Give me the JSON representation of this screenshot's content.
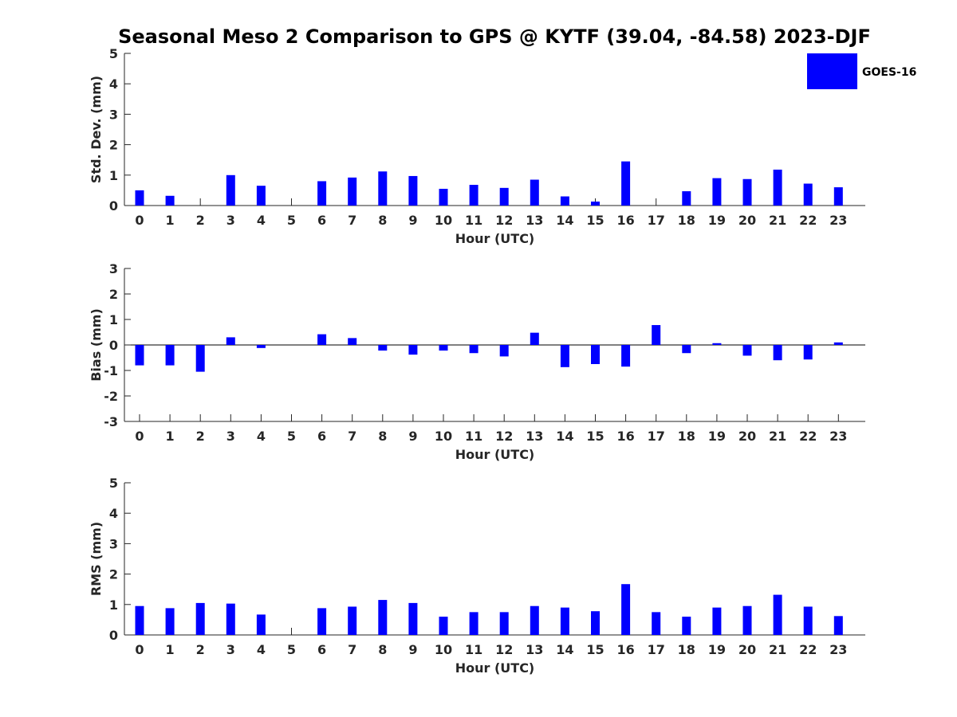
{
  "title": "Seasonal Meso 2 Comparison to GPS @ KYTF (39.04, -84.58) 2023-DJF",
  "legend": {
    "label": "GOES-16",
    "color": "#0000ff"
  },
  "bar_color": "#0000ff",
  "chart_data": [
    {
      "type": "bar",
      "xlabel": "Hour (UTC)",
      "ylabel": "Std. Dev. (mm)",
      "ylim": [
        0,
        5
      ],
      "yticks": [
        0,
        1,
        2,
        3,
        4,
        5
      ],
      "categories": [
        "0",
        "1",
        "2",
        "3",
        "4",
        "5",
        "6",
        "7",
        "8",
        "9",
        "10",
        "11",
        "12",
        "13",
        "14",
        "15",
        "16",
        "17",
        "18",
        "19",
        "20",
        "21",
        "22",
        "23"
      ],
      "series": [
        {
          "name": "GOES-16",
          "values": [
            0.5,
            0.32,
            null,
            1.0,
            0.65,
            null,
            0.8,
            0.92,
            1.12,
            0.97,
            0.55,
            0.68,
            0.58,
            0.85,
            0.3,
            0.13,
            1.45,
            null,
            0.47,
            0.9,
            0.87,
            1.18,
            0.72,
            0.6
          ]
        }
      ]
    },
    {
      "type": "bar",
      "xlabel": "Hour (UTC)",
      "ylabel": "Bias (mm)",
      "ylim": [
        -3,
        3
      ],
      "yticks": [
        -3,
        -2,
        -1,
        0,
        1,
        2,
        3
      ],
      "categories": [
        "0",
        "1",
        "2",
        "3",
        "4",
        "5",
        "6",
        "7",
        "8",
        "9",
        "10",
        "11",
        "12",
        "13",
        "14",
        "15",
        "16",
        "17",
        "18",
        "19",
        "20",
        "21",
        "22",
        "23"
      ],
      "series": [
        {
          "name": "GOES-16",
          "values": [
            -0.8,
            -0.8,
            -1.05,
            0.3,
            -0.12,
            0.0,
            0.42,
            0.27,
            -0.22,
            -0.38,
            -0.22,
            -0.32,
            -0.45,
            0.48,
            -0.87,
            -0.75,
            -0.85,
            0.78,
            -0.32,
            0.07,
            -0.42,
            -0.6,
            -0.57,
            0.1
          ]
        }
      ]
    },
    {
      "type": "bar",
      "xlabel": "Hour (UTC)",
      "ylabel": "RMS (mm)",
      "ylim": [
        0,
        5
      ],
      "yticks": [
        0,
        1,
        2,
        3,
        4,
        5
      ],
      "categories": [
        "0",
        "1",
        "2",
        "3",
        "4",
        "5",
        "6",
        "7",
        "8",
        "9",
        "10",
        "11",
        "12",
        "13",
        "14",
        "15",
        "16",
        "17",
        "18",
        "19",
        "20",
        "21",
        "22",
        "23"
      ],
      "series": [
        {
          "name": "GOES-16",
          "values": [
            0.95,
            0.88,
            1.05,
            1.03,
            0.67,
            null,
            0.88,
            0.93,
            1.15,
            1.05,
            0.6,
            0.75,
            0.75,
            0.95,
            0.9,
            0.78,
            1.67,
            0.75,
            0.6,
            0.9,
            0.95,
            1.32,
            0.93,
            0.62
          ]
        }
      ]
    }
  ]
}
